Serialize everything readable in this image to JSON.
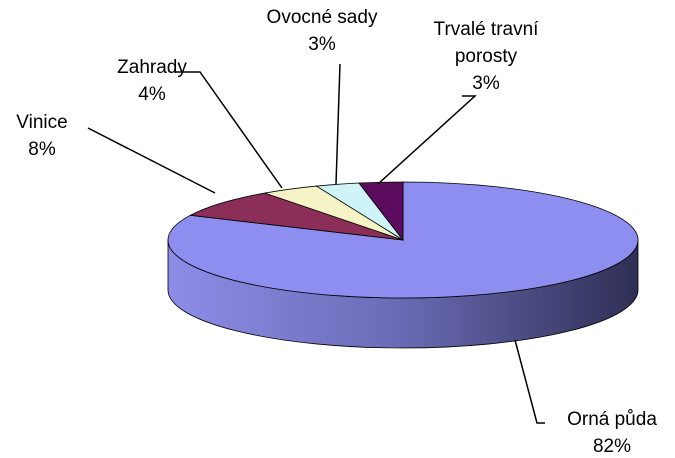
{
  "chart_data": {
    "type": "pie3d",
    "categories": [
      "Orná půda",
      "Vinice",
      "Zahrady",
      "Ovocné sady",
      "Trvalé travní porosty"
    ],
    "values": [
      82,
      8,
      4,
      3,
      3
    ],
    "value_labels": [
      "82%",
      "8%",
      "4%",
      "3%",
      "3%"
    ],
    "colors": [
      "#8e8ef0",
      "#8b2f58",
      "#f6f3c6",
      "#cff4f8",
      "#5c0c5f"
    ]
  }
}
